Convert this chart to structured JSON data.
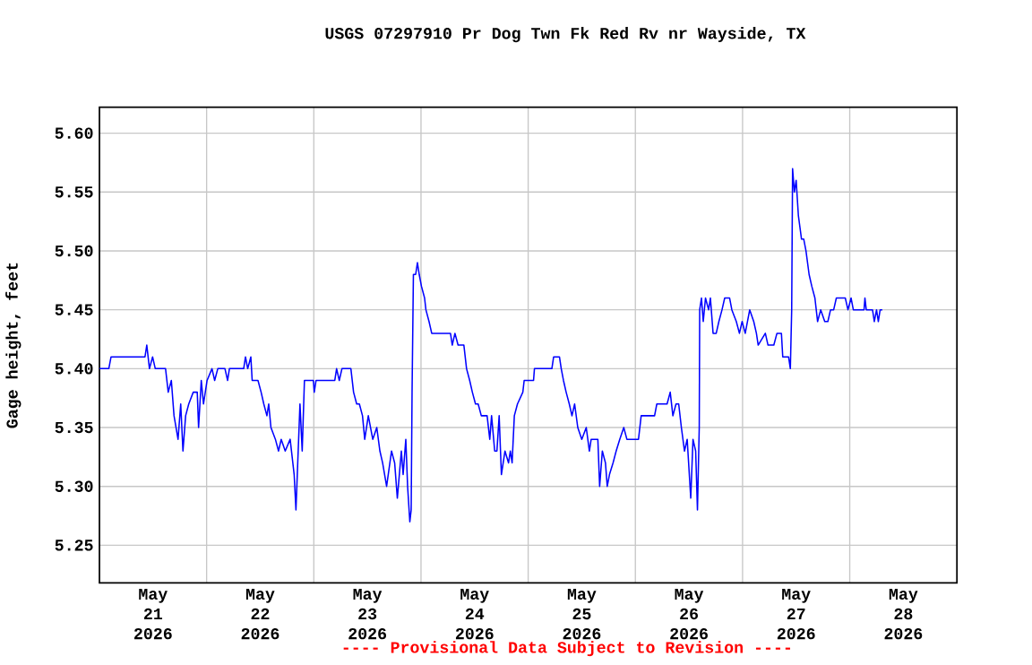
{
  "chart_data": {
    "type": "line",
    "title": "USGS 07297910 Pr Dog Twn Fk Red Rv nr Wayside, TX",
    "ylabel": "Gage height, feet",
    "annotations": [
      "---- Provisional Data Subject to Revision ----"
    ],
    "grid": true,
    "xlim": [
      "2026-05-21T00:00",
      "2026-05-29T00:00"
    ],
    "ylim": [
      5.218,
      5.622
    ],
    "yticks": [
      {
        "value": 5.25,
        "label": "5.25"
      },
      {
        "value": 5.3,
        "label": "5.30"
      },
      {
        "value": 5.35,
        "label": "5.35"
      },
      {
        "value": 5.4,
        "label": "5.40"
      },
      {
        "value": 5.45,
        "label": "5.45"
      },
      {
        "value": 5.5,
        "label": "5.50"
      },
      {
        "value": 5.55,
        "label": "5.55"
      },
      {
        "value": 5.6,
        "label": "5.60"
      }
    ],
    "xticks": [
      {
        "value": "2026-05-21T12:00",
        "label": "May 21 2026"
      },
      {
        "value": "2026-05-22T12:00",
        "label": "May 22 2026"
      },
      {
        "value": "2026-05-23T12:00",
        "label": "May 23 2026"
      },
      {
        "value": "2026-05-24T12:00",
        "label": "May 24 2026"
      },
      {
        "value": "2026-05-25T12:00",
        "label": "May 25 2026"
      },
      {
        "value": "2026-05-26T12:00",
        "label": "May 26 2026"
      },
      {
        "value": "2026-05-27T12:00",
        "label": "May 27 2026"
      },
      {
        "value": "2026-05-28T12:00",
        "label": "May 28 2026"
      },
      {
        "value": "2026-05-22T00:00",
        "label": null
      },
      {
        "value": "2026-05-23T00:00",
        "label": null
      },
      {
        "value": "2026-05-24T00:00",
        "label": null
      },
      {
        "value": "2026-05-25T00:00",
        "label": null
      },
      {
        "value": "2026-05-26T00:00",
        "label": null
      },
      {
        "value": "2026-05-27T00:00",
        "label": null
      },
      {
        "value": "2026-05-28T00:00",
        "label": null
      }
    ],
    "x": [
      "2026-05-21T00:00",
      "2026-05-21T02:06",
      "2026-05-21T02:36",
      "2026-05-21T10:12",
      "2026-05-21T10:36",
      "2026-05-21T11:12",
      "2026-05-21T11:54",
      "2026-05-21T12:30",
      "2026-05-21T14:48",
      "2026-05-21T15:24",
      "2026-05-21T16:06",
      "2026-05-21T16:42",
      "2026-05-21T17:36",
      "2026-05-21T18:12",
      "2026-05-21T18:42",
      "2026-05-21T19:18",
      "2026-05-21T20:00",
      "2026-05-21T21:00",
      "2026-05-21T21:54",
      "2026-05-21T22:12",
      "2026-05-21T22:48",
      "2026-05-21T23:18",
      "2026-05-22T00:06",
      "2026-05-22T01:12",
      "2026-05-22T01:48",
      "2026-05-22T02:30",
      "2026-05-22T04:06",
      "2026-05-22T04:42",
      "2026-05-22T05:06",
      "2026-05-22T08:18",
      "2026-05-22T08:42",
      "2026-05-22T09:12",
      "2026-05-22T09:54",
      "2026-05-22T10:12",
      "2026-05-22T11:30",
      "2026-05-22T12:12",
      "2026-05-22T12:48",
      "2026-05-22T13:30",
      "2026-05-22T13:54",
      "2026-05-22T14:24",
      "2026-05-22T15:24",
      "2026-05-22T16:06",
      "2026-05-22T16:42",
      "2026-05-22T17:36",
      "2026-05-22T18:42",
      "2026-05-22T19:36",
      "2026-05-22T20:00",
      "2026-05-22T20:24",
      "2026-05-22T20:54",
      "2026-05-22T21:24",
      "2026-05-22T21:54",
      "2026-05-22T23:54",
      "2026-05-23T00:06",
      "2026-05-23T00:30",
      "2026-05-23T04:42",
      "2026-05-23T05:06",
      "2026-05-23T05:42",
      "2026-05-23T06:18",
      "2026-05-23T08:18",
      "2026-05-23T08:54",
      "2026-05-23T09:36",
      "2026-05-23T10:12",
      "2026-05-23T10:54",
      "2026-05-23T11:24",
      "2026-05-23T12:12",
      "2026-05-23T13:12",
      "2026-05-23T14:06",
      "2026-05-23T14:48",
      "2026-05-23T15:24",
      "2026-05-23T16:18",
      "2026-05-23T17:24",
      "2026-05-23T18:06",
      "2026-05-23T18:42",
      "2026-05-23T19:36",
      "2026-05-23T20:00",
      "2026-05-23T20:36",
      "2026-05-23T21:00",
      "2026-05-23T21:30",
      "2026-05-23T21:48",
      "2026-05-23T22:00",
      "2026-05-23T22:18",
      "2026-05-23T22:48",
      "2026-05-23T23:12",
      "2026-05-23T23:36",
      "2026-05-24T00:06",
      "2026-05-24T00:48",
      "2026-05-24T01:06",
      "2026-05-24T01:48",
      "2026-05-24T02:24",
      "2026-05-24T06:36",
      "2026-05-24T07:00",
      "2026-05-24T07:36",
      "2026-05-24T08:18",
      "2026-05-24T09:36",
      "2026-05-24T10:12",
      "2026-05-24T10:54",
      "2026-05-24T11:30",
      "2026-05-24T12:12",
      "2026-05-24T12:48",
      "2026-05-24T13:30",
      "2026-05-24T14:48",
      "2026-05-24T15:24",
      "2026-05-24T15:48",
      "2026-05-24T16:30",
      "2026-05-24T17:00",
      "2026-05-24T17:30",
      "2026-05-24T18:00",
      "2026-05-24T18:48",
      "2026-05-24T19:36",
      "2026-05-24T20:00",
      "2026-05-24T20:24",
      "2026-05-24T20:54",
      "2026-05-24T21:36",
      "2026-05-24T22:48",
      "2026-05-24T23:06",
      "2026-05-25T01:12",
      "2026-05-25T01:24",
      "2026-05-25T05:18",
      "2026-05-25T05:42",
      "2026-05-25T07:00",
      "2026-05-25T07:24",
      "2026-05-25T07:54",
      "2026-05-25T08:30",
      "2026-05-25T09:12",
      "2026-05-25T09:48",
      "2026-05-25T10:24",
      "2026-05-25T11:06",
      "2026-05-25T12:00",
      "2026-05-25T13:00",
      "2026-05-25T13:42",
      "2026-05-25T14:06",
      "2026-05-25T15:36",
      "2026-05-25T16:00",
      "2026-05-25T16:36",
      "2026-05-25T17:18",
      "2026-05-25T17:42",
      "2026-05-25T18:12",
      "2026-05-25T19:00",
      "2026-05-25T19:42",
      "2026-05-25T20:30",
      "2026-05-25T21:24",
      "2026-05-25T22:06",
      "2026-05-25T22:42",
      "2026-05-26T00:42",
      "2026-05-26T01:18",
      "2026-05-26T01:54",
      "2026-05-26T04:18",
      "2026-05-26T04:48",
      "2026-05-26T07:06",
      "2026-05-26T07:48",
      "2026-05-26T08:24",
      "2026-05-26T09:06",
      "2026-05-26T09:42",
      "2026-05-26T10:18",
      "2026-05-26T11:00",
      "2026-05-26T11:36",
      "2026-05-26T12:24",
      "2026-05-26T12:54",
      "2026-05-26T13:30",
      "2026-05-26T13:54",
      "2026-05-26T14:18",
      "2026-05-26T14:24",
      "2026-05-26T14:48",
      "2026-05-26T15:12",
      "2026-05-26T15:42",
      "2026-05-26T16:24",
      "2026-05-26T16:48",
      "2026-05-26T17:24",
      "2026-05-26T18:06",
      "2026-05-26T18:42",
      "2026-05-26T19:24",
      "2026-05-26T20:00",
      "2026-05-26T21:06",
      "2026-05-26T21:36",
      "2026-05-26T22:36",
      "2026-05-26T23:18",
      "2026-05-26T23:54",
      "2026-05-27T00:36",
      "2026-05-27T01:36",
      "2026-05-27T02:30",
      "2026-05-27T03:06",
      "2026-05-27T03:30",
      "2026-05-27T05:06",
      "2026-05-27T05:42",
      "2026-05-27T07:00",
      "2026-05-27T07:42",
      "2026-05-27T08:42",
      "2026-05-27T09:00",
      "2026-05-27T09:24",
      "2026-05-27T10:18",
      "2026-05-27T10:42",
      "2026-05-27T11:00",
      "2026-05-27T11:12",
      "2026-05-27T11:36",
      "2026-05-27T12:00",
      "2026-05-27T12:30",
      "2026-05-27T13:12",
      "2026-05-27T13:42",
      "2026-05-27T14:12",
      "2026-05-27T14:54",
      "2026-05-27T15:30",
      "2026-05-27T16:12",
      "2026-05-27T16:48",
      "2026-05-27T17:30",
      "2026-05-27T18:24",
      "2026-05-27T19:06",
      "2026-05-27T19:42",
      "2026-05-27T20:24",
      "2026-05-27T21:00",
      "2026-05-27T23:00",
      "2026-05-27T23:36",
      "2026-05-28T00:18",
      "2026-05-28T00:48",
      "2026-05-28T03:12",
      "2026-05-28T03:24",
      "2026-05-28T03:42",
      "2026-05-28T05:06",
      "2026-05-28T05:30",
      "2026-05-28T06:00",
      "2026-05-28T06:24",
      "2026-05-28T06:48",
      "2026-05-28T07:18"
    ],
    "series": [
      {
        "color": "#0000ff",
        "values": [
          5.4,
          5.4,
          5.41,
          5.41,
          5.42,
          5.4,
          5.41,
          5.4,
          5.4,
          5.38,
          5.39,
          5.36,
          5.34,
          5.37,
          5.33,
          5.36,
          5.37,
          5.38,
          5.38,
          5.35,
          5.39,
          5.37,
          5.39,
          5.4,
          5.39,
          5.4,
          5.4,
          5.39,
          5.4,
          5.4,
          5.41,
          5.4,
          5.41,
          5.39,
          5.39,
          5.38,
          5.37,
          5.36,
          5.37,
          5.35,
          5.34,
          5.33,
          5.34,
          5.33,
          5.34,
          5.31,
          5.28,
          5.32,
          5.37,
          5.33,
          5.39,
          5.39,
          5.38,
          5.39,
          5.39,
          5.4,
          5.39,
          5.4,
          5.4,
          5.38,
          5.37,
          5.37,
          5.36,
          5.34,
          5.36,
          5.34,
          5.35,
          5.33,
          5.32,
          5.3,
          5.33,
          5.32,
          5.29,
          5.33,
          5.31,
          5.34,
          5.3,
          5.27,
          5.28,
          5.38,
          5.48,
          5.48,
          5.49,
          5.48,
          5.47,
          5.46,
          5.45,
          5.44,
          5.43,
          5.43,
          5.42,
          5.43,
          5.42,
          5.42,
          5.4,
          5.39,
          5.38,
          5.37,
          5.37,
          5.36,
          5.36,
          5.34,
          5.36,
          5.33,
          5.33,
          5.36,
          5.31,
          5.33,
          5.32,
          5.33,
          5.32,
          5.36,
          5.37,
          5.38,
          5.39,
          5.39,
          5.4,
          5.4,
          5.41,
          5.41,
          5.4,
          5.39,
          5.38,
          5.37,
          5.36,
          5.37,
          5.35,
          5.34,
          5.35,
          5.33,
          5.34,
          5.34,
          5.3,
          5.33,
          5.32,
          5.3,
          5.31,
          5.32,
          5.33,
          5.34,
          5.35,
          5.34,
          5.34,
          5.34,
          5.36,
          5.36,
          5.36,
          5.37,
          5.37,
          5.38,
          5.36,
          5.37,
          5.37,
          5.35,
          5.33,
          5.34,
          5.29,
          5.34,
          5.33,
          5.28,
          5.35,
          5.45,
          5.46,
          5.44,
          5.46,
          5.45,
          5.46,
          5.43,
          5.43,
          5.44,
          5.45,
          5.46,
          5.46,
          5.45,
          5.44,
          5.43,
          5.44,
          5.43,
          5.45,
          5.44,
          5.43,
          5.42,
          5.43,
          5.42,
          5.42,
          5.43,
          5.43,
          5.41,
          5.41,
          5.41,
          5.4,
          5.45,
          5.57,
          5.55,
          5.56,
          5.53,
          5.51,
          5.51,
          5.5,
          5.48,
          5.47,
          5.46,
          5.44,
          5.45,
          5.44,
          5.44,
          5.45,
          5.45,
          5.46,
          5.46,
          5.45,
          5.46,
          5.45,
          5.45,
          5.46,
          5.45,
          5.45,
          5.44,
          5.45,
          5.44,
          5.45,
          5.45
        ]
      }
    ]
  }
}
